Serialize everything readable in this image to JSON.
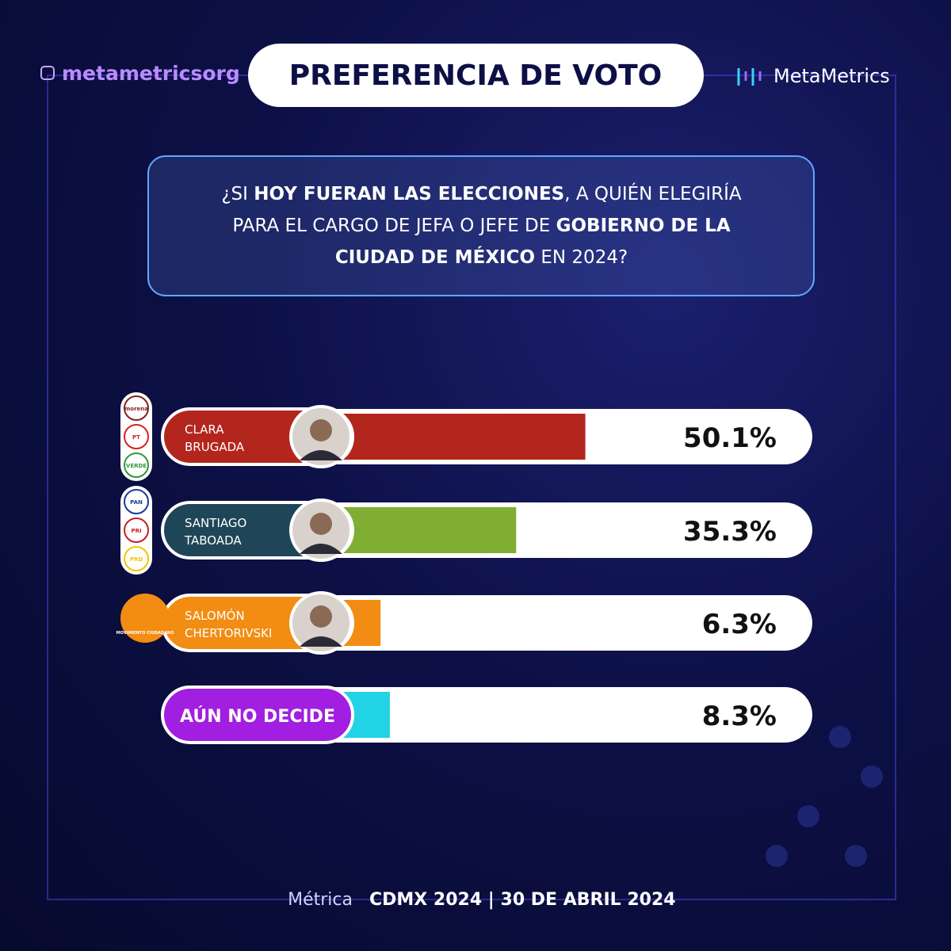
{
  "chart_data": {
    "type": "bar",
    "title": "PREFERENCIA DE VOTO",
    "handle": "metametricsorg",
    "brand": "MetaMetrics",
    "question": [
      {
        "text": "¿SI ",
        "bold": false
      },
      {
        "text": "HOY FUERAN LAS ELECCIONES",
        "bold": true
      },
      {
        "text": ", A QUIÉN ELEGIRÍA PARA EL CARGO DE JEFA O JEFE DE ",
        "bold": false
      },
      {
        "text": "GOBIERNO DE LA CIUDAD DE MÉXICO",
        "bold": true
      },
      {
        "text": " EN 2024?",
        "bold": false
      }
    ],
    "categories": [
      [
        "CLARA",
        "BRUGADA"
      ],
      [
        "SANTIAGO",
        "TABOADA"
      ],
      [
        "SALOMÓN",
        "CHERTORIVSKI"
      ],
      [
        "AÚN NO DECIDE"
      ]
    ],
    "parties": [
      [
        "morena",
        "PT",
        "VERDE"
      ],
      [
        "PAN",
        "PRI",
        "PRD"
      ],
      [
        "MOVIMIENTO CIUDADANO"
      ],
      []
    ],
    "values": [
      50.1,
      35.3,
      6.3,
      8.3
    ],
    "value_labels": [
      "50.1%",
      "35.3%",
      "6.3%",
      "8.3%"
    ],
    "colors": [
      "#b3261e",
      "#7fae32",
      "#f28c12",
      "#22d3e6"
    ],
    "label_colors": [
      "#b3261e",
      "#1f4658",
      "#f28c12",
      "#a21ee0"
    ],
    "footer_left": "Métrica",
    "footer_right": "CDMX 2024 | 30 DE ABRIL 2024"
  }
}
